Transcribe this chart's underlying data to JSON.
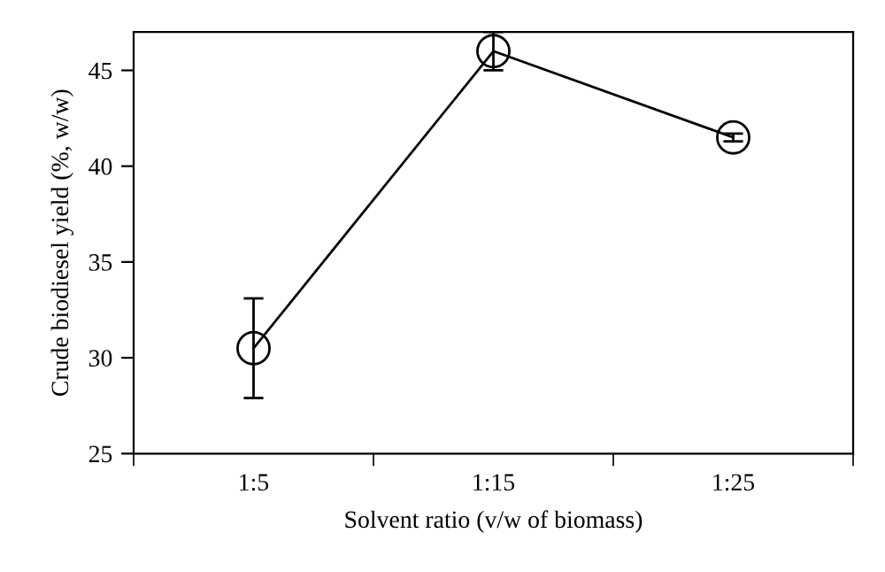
{
  "chart_data": {
    "type": "line",
    "xlabel": "Solvent ratio (v/w of biomass)",
    "ylabel": "Crude biodiesel yield (%, w/w)",
    "categories": [
      "1:5",
      "1:15",
      "1:25"
    ],
    "series": [
      {
        "color": "#000000",
        "values": [
          30.5,
          46.0,
          41.5
        ],
        "errors": [
          2.6,
          1.0,
          0.2
        ]
      }
    ],
    "ylim": [
      25,
      47
    ],
    "yticks": [
      25,
      30,
      35,
      40,
      45
    ],
    "marker": "circle",
    "line_style": "solid"
  }
}
